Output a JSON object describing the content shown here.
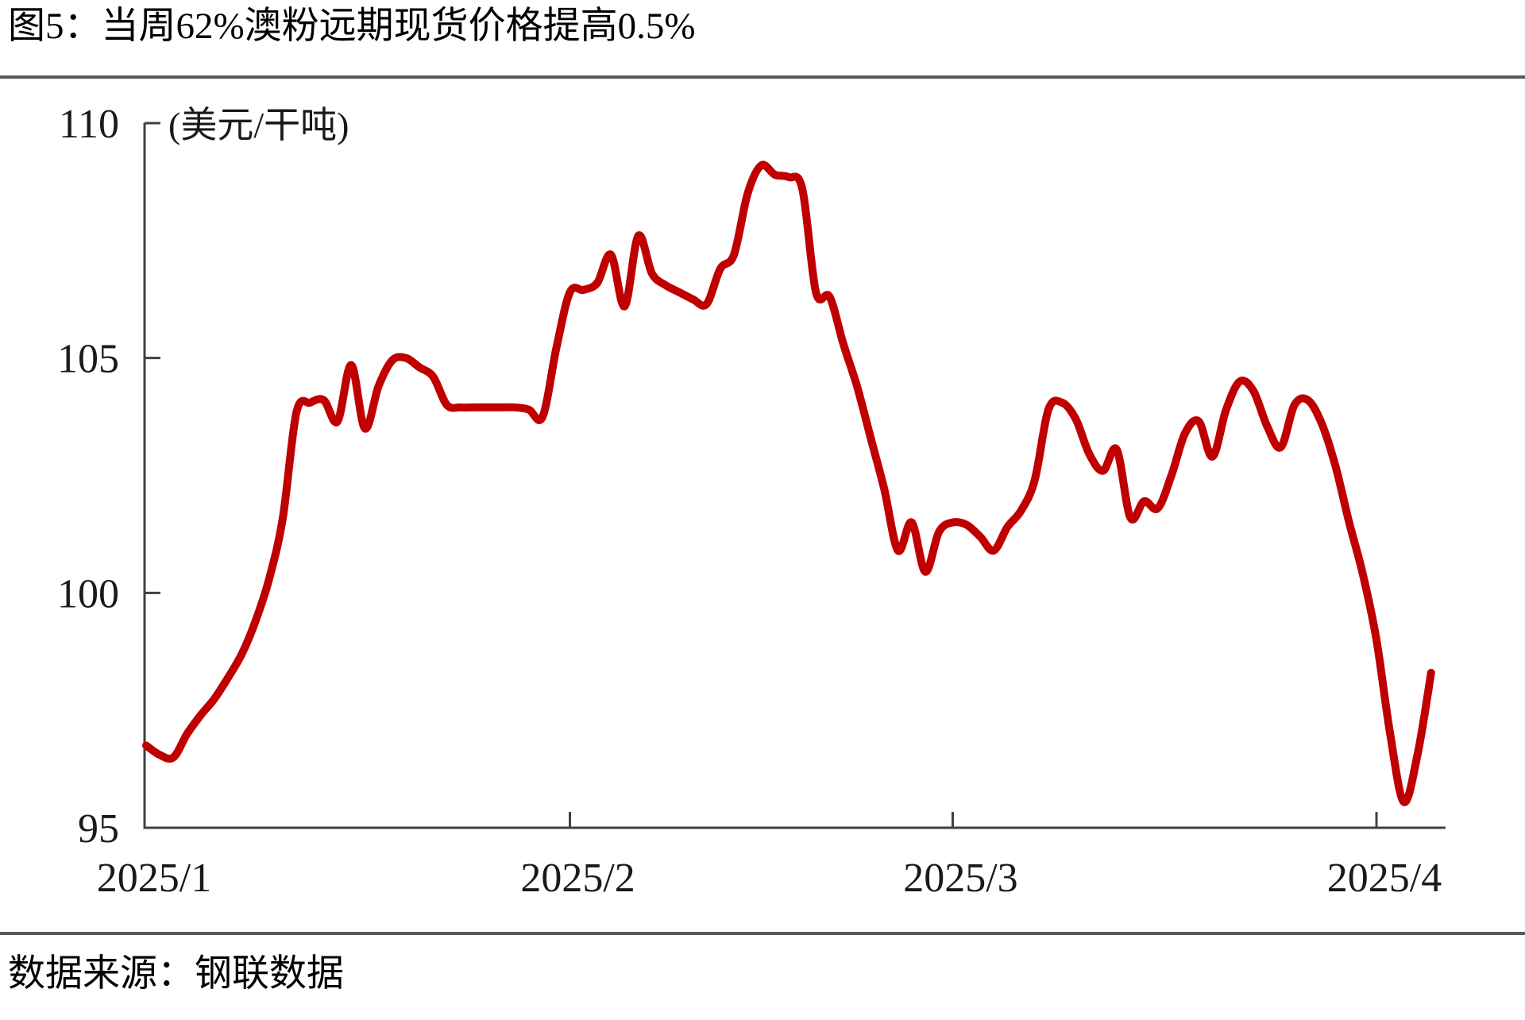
{
  "page": {
    "title": "图5：当周62%澳粉远期现货价格提高0.5%",
    "source": "数据来源：钢联数据"
  },
  "chart_data": {
    "type": "line",
    "title": "当周62%澳粉远期现货价格提高0.5%",
    "series_name": "62%澳粉远期现货价格",
    "ylabel": "(美元/干吨)",
    "xlabel": "",
    "ylim": [
      95,
      110
    ],
    "yticks": [
      95,
      100,
      105,
      110
    ],
    "xticks": [
      {
        "label": "2025/1",
        "day": 0
      },
      {
        "label": "2025/2",
        "day": 31
      },
      {
        "label": "2025/3",
        "day": 59
      },
      {
        "label": "2025/4",
        "day": 90
      }
    ],
    "grid": false,
    "legend": "none",
    "line_color": "#c00000",
    "axis_color": "#404040",
    "dates": [
      "2025/1/1",
      "2025/1/2",
      "2025/1/3",
      "2025/1/4",
      "2025/1/5",
      "2025/1/6",
      "2025/1/7",
      "2025/1/8",
      "2025/1/9",
      "2025/1/10",
      "2025/1/11",
      "2025/1/12",
      "2025/1/13",
      "2025/1/14",
      "2025/1/15",
      "2025/1/16",
      "2025/1/17",
      "2025/1/18",
      "2025/1/19",
      "2025/1/20",
      "2025/1/21",
      "2025/1/22",
      "2025/1/23",
      "2025/1/24",
      "2025/1/25",
      "2025/1/26",
      "2025/1/27",
      "2025/1/28",
      "2025/1/29",
      "2025/1/30",
      "2025/1/31",
      "2025/2/1",
      "2025/2/2",
      "2025/2/3",
      "2025/2/4",
      "2025/2/5",
      "2025/2/6",
      "2025/2/7",
      "2025/2/8",
      "2025/2/9",
      "2025/2/10",
      "2025/2/11",
      "2025/2/12",
      "2025/2/13",
      "2025/2/14",
      "2025/2/15",
      "2025/2/16",
      "2025/2/17",
      "2025/2/18",
      "2025/2/19",
      "2025/2/20",
      "2025/2/21",
      "2025/2/22",
      "2025/2/23",
      "2025/2/24",
      "2025/2/25",
      "2025/2/26",
      "2025/2/27",
      "2025/2/28",
      "2025/3/1",
      "2025/3/2",
      "2025/3/3",
      "2025/3/4",
      "2025/3/5",
      "2025/3/6",
      "2025/3/7",
      "2025/3/8",
      "2025/3/9",
      "2025/3/10",
      "2025/3/11",
      "2025/3/12",
      "2025/3/13",
      "2025/3/14",
      "2025/3/15",
      "2025/3/16",
      "2025/3/17",
      "2025/3/18",
      "2025/3/19",
      "2025/3/20",
      "2025/3/21",
      "2025/3/22",
      "2025/3/23",
      "2025/3/24",
      "2025/3/25",
      "2025/3/26",
      "2025/3/27",
      "2025/3/28",
      "2025/3/29",
      "2025/3/30",
      "2025/3/31",
      "2025/4/1",
      "2025/4/2",
      "2025/4/3",
      "2025/4/4",
      "2025/4/5"
    ],
    "values": [
      96.75,
      96.55,
      96.5,
      97.0,
      97.4,
      97.75,
      98.2,
      98.7,
      99.4,
      100.3,
      101.6,
      103.85,
      104.05,
      104.1,
      103.65,
      104.85,
      103.5,
      104.4,
      104.95,
      105.0,
      104.8,
      104.6,
      104.0,
      103.95,
      103.95,
      103.95,
      103.95,
      103.95,
      103.9,
      103.75,
      105.2,
      106.4,
      106.45,
      106.6,
      107.2,
      106.1,
      107.6,
      106.8,
      106.55,
      106.4,
      106.25,
      106.15,
      106.9,
      107.2,
      108.5,
      109.1,
      108.9,
      108.85,
      108.6,
      106.4,
      106.3,
      105.3,
      104.4,
      103.3,
      102.2,
      100.9,
      101.5,
      100.45,
      101.3,
      101.5,
      101.45,
      101.2,
      100.9,
      101.4,
      101.75,
      102.4,
      103.9,
      104.05,
      103.7,
      102.95,
      102.6,
      103.05,
      101.6,
      101.95,
      101.8,
      102.5,
      103.4,
      103.65,
      102.9,
      103.9,
      104.5,
      104.3,
      103.55,
      103.1,
      104.0,
      104.1,
      103.6,
      102.7,
      101.5,
      100.4,
      99.0,
      97.0,
      95.55,
      96.55,
      98.3
    ]
  }
}
